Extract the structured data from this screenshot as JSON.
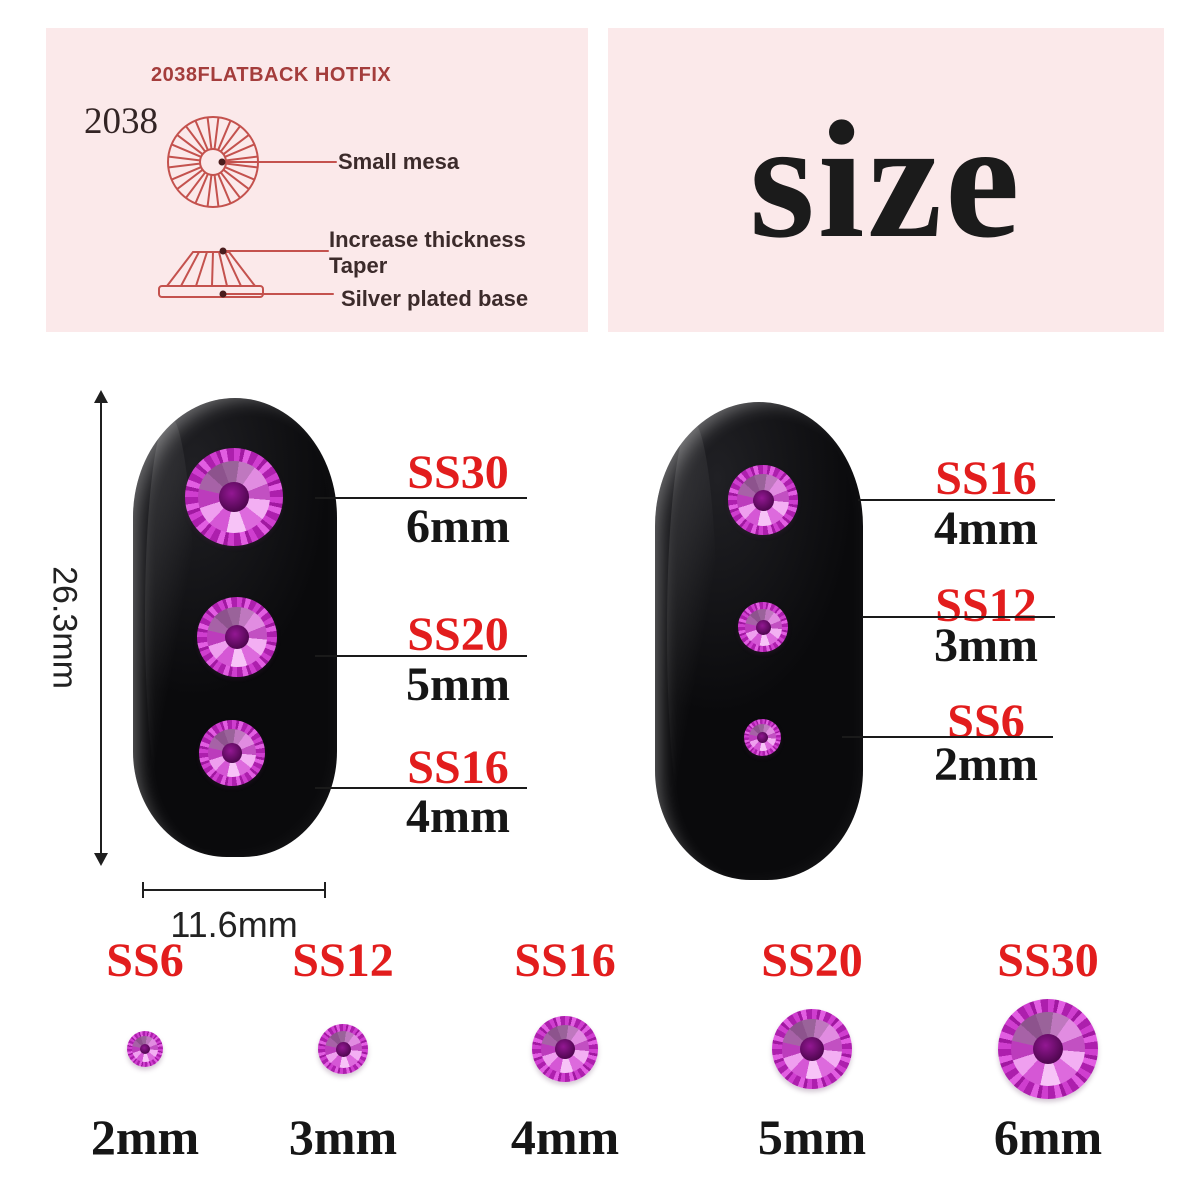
{
  "spec_box": {
    "title": "2038FLATBACK HOTFIX",
    "model": "2038",
    "callouts": {
      "mesa": "Small mesa",
      "thickness": "Increase thickness",
      "taper": "Taper",
      "base": "Silver plated base"
    },
    "icons": {
      "top_view": "rhinestone-top-view",
      "side_view": "rhinestone-side-profile"
    }
  },
  "banner": {
    "text": "size"
  },
  "dimensions": {
    "height": "26.3mm",
    "width": "11.6mm"
  },
  "left_nail": {
    "callouts": [
      {
        "code": "SS30",
        "size": "6mm"
      },
      {
        "code": "SS20",
        "size": "5mm"
      },
      {
        "code": "SS16",
        "size": "4mm"
      }
    ]
  },
  "right_nail": {
    "callouts": [
      {
        "code": "SS16",
        "size": "4mm"
      },
      {
        "code": "SS12",
        "size": "3mm"
      },
      {
        "code": "SS6",
        "size": "2mm"
      }
    ]
  },
  "size_row": [
    {
      "code": "SS6",
      "size": "2mm"
    },
    {
      "code": "SS12",
      "size": "3mm"
    },
    {
      "code": "SS16",
      "size": "4mm"
    },
    {
      "code": "SS20",
      "size": "5mm"
    },
    {
      "code": "SS30",
      "size": "6mm"
    }
  ],
  "colors": {
    "accent_red": "#e21d1d",
    "panel_pink": "#fbe9ea",
    "diagram_red": "#c4524e",
    "gem_magenta": "#cc2fcc",
    "nail_black": "#0c0c0e"
  }
}
